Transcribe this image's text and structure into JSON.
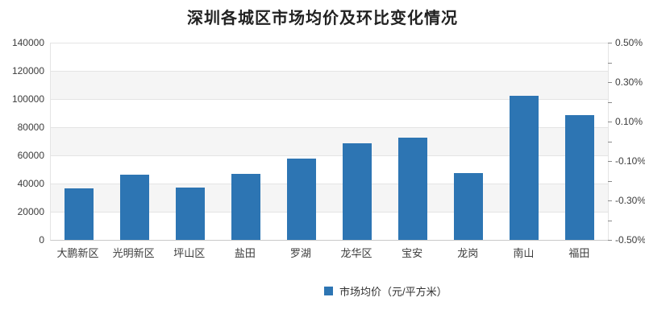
{
  "title": "深圳各城区市场均价及环比变化情况",
  "legend": {
    "label": "市场均价（元/平方米）",
    "swatch_color": "#2d75b3"
  },
  "chart_data": {
    "type": "bar",
    "title": "深圳各城区市场均价及环比变化情况",
    "categories": [
      "大鹏新区",
      "光明新区",
      "坪山区",
      "盐田",
      "罗湖",
      "龙华区",
      "宝安",
      "龙岗",
      "南山",
      "福田"
    ],
    "series": [
      {
        "name": "市场均价（元/平方米）",
        "yaxis": "left",
        "color": "#2d75b3",
        "values": [
          36800,
          46100,
          37400,
          46900,
          57900,
          68500,
          72300,
          47600,
          102500,
          88500
        ]
      }
    ],
    "y_axis_left": {
      "min": 0,
      "max": 140000,
      "step": 20000,
      "tick_labels_top_to_bottom": [
        "140000",
        "120000",
        "100000",
        "80000",
        "60000",
        "40000",
        "20000",
        "0"
      ]
    },
    "y_axis_right": {
      "min": -0.5,
      "max": 0.5,
      "unit": "%",
      "labeled_ticks_top_to_bottom": [
        "0.50%",
        "0.30%",
        "0.10%",
        "-0.10%",
        "-0.30%",
        "-0.50%"
      ],
      "minor_tick_step": 0.1,
      "minor_tick_positions": 11
    },
    "grid": true,
    "split_area": true,
    "split_area_color": "#f5f5f5",
    "legend_position": "bottom-center",
    "xlabel": "",
    "ylabel": ""
  }
}
